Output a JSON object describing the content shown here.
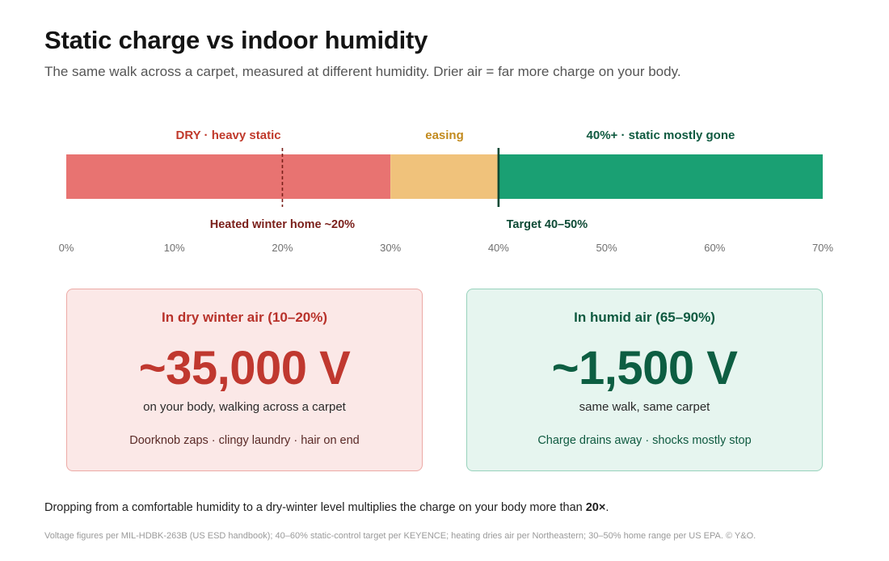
{
  "title": "Static charge vs indoor humidity",
  "subtitle": "The same walk across a carpet, measured at different humidity. Drier air = far more charge on your body.",
  "chart_data": {
    "type": "bar",
    "orientation": "horizontal-range",
    "xlim": [
      0,
      70
    ],
    "x_unit": "%",
    "ticks": [
      "0%",
      "10%",
      "20%",
      "30%",
      "40%",
      "50%",
      "60%",
      "70%"
    ],
    "tick_values": [
      0,
      10,
      20,
      30,
      40,
      50,
      60,
      70
    ],
    "zones": [
      {
        "label": "DRY · heavy static",
        "from": 0,
        "to": 30,
        "color": "#e87371",
        "label_color": "#c0392b"
      },
      {
        "label": "easing",
        "from": 30,
        "to": 40,
        "color": "#f0c27b",
        "label_color": "#c28a1d"
      },
      {
        "label": "40%+ · static mostly gone",
        "from": 40,
        "to": 70,
        "color": "#1aa073",
        "label_color": "#0f5a40"
      }
    ],
    "markers": [
      {
        "label": "Heated winter home ~20%",
        "value": 20,
        "style": "dashed",
        "color": "#7a1f1a"
      },
      {
        "label": "Target 40–50%",
        "value": 40,
        "style": "solid",
        "color": "#0d4a35"
      }
    ]
  },
  "cards": {
    "dry": {
      "heading": "In dry winter air (10–20%)",
      "value": "~35,000 V",
      "sub": "on your body, walking across a carpet",
      "effects": "Doorknob zaps · clingy laundry · hair on end"
    },
    "humid": {
      "heading": "In humid air (65–90%)",
      "value": "~1,500 V",
      "sub": "same walk, same carpet",
      "effects": "Charge drains away · shocks mostly stop"
    }
  },
  "summary": {
    "text": "Dropping from a comfortable humidity to a dry-winter level multiplies the charge on your body more than ",
    "emphasis": "20×",
    "end": "."
  },
  "sources": "Voltage figures per MIL-HDBK-263B (US ESD handbook); 40–60% static-control target per KEYENCE; heating dries air per Northeastern; 30–50% home range per US EPA. © Y&O."
}
